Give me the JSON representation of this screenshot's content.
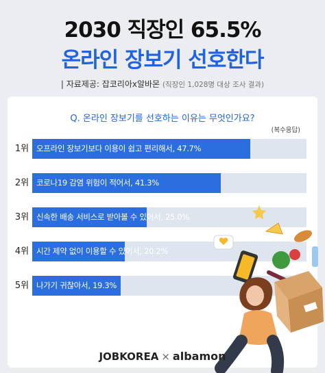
{
  "header": {
    "title_line1": "2030 직장인 65.5%",
    "title_line2": "온라인 장보기 선호한다",
    "source_label": "| 자료제공: 잡코리아x알바몬",
    "source_note": "(직장인 1,028명 대상 조사 결과)"
  },
  "question": "Q. 온라인 장보기를 선호하는 이유는 무엇인가요?",
  "multi_answer_note": "(복수응답)",
  "chart_data": {
    "type": "bar",
    "orientation": "horizontal",
    "ranks": [
      "1위",
      "2위",
      "3위",
      "4위",
      "5위"
    ],
    "categories": [
      "오프라인 장보기보다 이용이 쉽고 편리해서",
      "코로나19 감염 위험이 적어서",
      "신속한 배송 서비스로 받아볼 수 있어서",
      "시간 제약 없이 이용할 수 있어서",
      "나가기 귀찮아서"
    ],
    "values": [
      47.7,
      41.3,
      25.0,
      20.2,
      19.3
    ],
    "value_labels": [
      "47.7%",
      "41.3%",
      "25.0%",
      "20.2%",
      "19.3%"
    ],
    "bar_labels": [
      "오프라인 장보기보다 이용이 쉽고 편리해서, 47.7%",
      "코로나19 감염 위험이 적어서, 41.3%",
      "신속한 배송 서비스로 받아볼 수 있어서, 25.0%",
      "시간 제약 없이 이용할 수 있어서, 20.2%",
      "나가기 귀찮아서, 19.3%"
    ],
    "xlim": [
      0,
      60
    ],
    "grid": false,
    "legend": "none",
    "colors": {
      "bar": "#2a6ee0",
      "track": "#dfe5ef",
      "accent": "#1f63e0"
    }
  },
  "footer": {
    "brand1": "JOBKOREA",
    "separator": "×",
    "brand2": "albamon"
  },
  "illustration_icons": [
    "shopping-woman-illustration",
    "smartphone-icon",
    "box-icon",
    "vegetables-icon",
    "heart-bubble-icon",
    "star-icon"
  ]
}
